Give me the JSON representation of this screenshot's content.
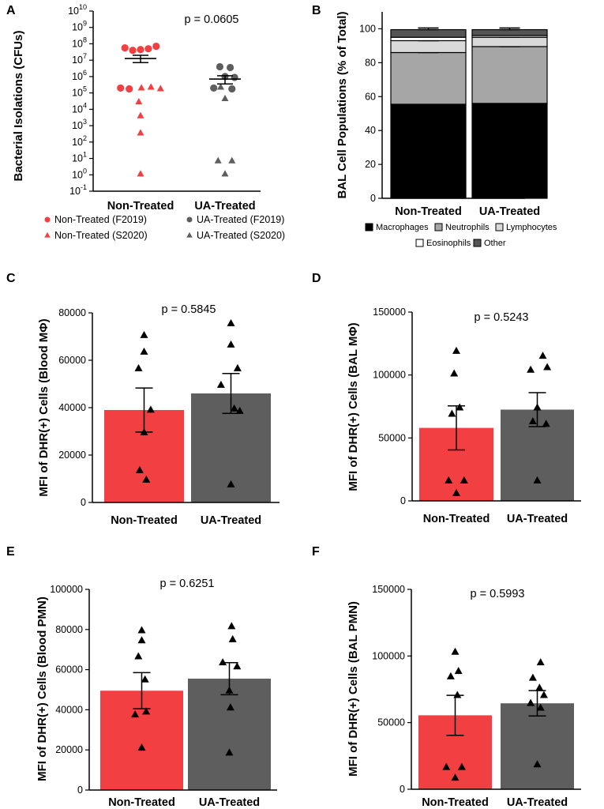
{
  "colors": {
    "red": "#f23f41",
    "gray": "#5e5e5e",
    "black": "#000000",
    "b_macro": "#000000",
    "b_neutro": "#a6a6a6",
    "b_lymph": "#d9d9d9",
    "b_eos": "#ffffff",
    "b_other": "#555555"
  },
  "chart_data": [
    {
      "panel": "A",
      "type": "scatter",
      "yscale": "log10",
      "ylabel": "Bacterial Isolations (CFUs)",
      "categories": [
        "Non-Treated",
        "UA-Treated"
      ],
      "ylim_exp": [
        -1,
        10
      ],
      "yticks": [
        {
          "base": "10",
          "exp": "10"
        },
        {
          "base": "10",
          "exp": "9"
        },
        {
          "base": "10",
          "exp": "8"
        },
        {
          "base": "10",
          "exp": "7"
        },
        {
          "base": "10",
          "exp": "6"
        },
        {
          "base": "10",
          "exp": "5"
        },
        {
          "base": "10",
          "exp": "4"
        },
        {
          "base": "10",
          "exp": "3"
        },
        {
          "base": "10",
          "exp": "2"
        },
        {
          "base": "10",
          "exp": "1"
        },
        {
          "base": "10",
          "exp": "0"
        },
        {
          "base": "10",
          "exp": "-1"
        }
      ],
      "pvalue": "p = 0.0605",
      "mean_log": [
        7.1,
        5.85
      ],
      "sem_log": [
        [
          6.85,
          7.3
        ],
        [
          5.55,
          6.05
        ]
      ],
      "points": [
        {
          "group": 0,
          "shape": "circle",
          "log": 7.75,
          "dx": -0.9
        },
        {
          "group": 0,
          "shape": "circle",
          "log": 7.6,
          "dx": -0.45
        },
        {
          "group": 0,
          "shape": "circle",
          "log": 7.65,
          "dx": 0.0
        },
        {
          "group": 0,
          "shape": "circle",
          "log": 7.7,
          "dx": 0.45
        },
        {
          "group": 0,
          "shape": "circle",
          "log": 7.85,
          "dx": 0.9
        },
        {
          "group": 0,
          "shape": "circle",
          "log": 5.3,
          "dx": -1.15
        },
        {
          "group": 0,
          "shape": "circle",
          "log": 5.25,
          "dx": -0.65
        },
        {
          "group": 0,
          "shape": "triangle",
          "log": 5.3,
          "dx": 0.05
        },
        {
          "group": 0,
          "shape": "triangle",
          "log": 5.35,
          "dx": 0.6
        },
        {
          "group": 0,
          "shape": "triangle",
          "log": 5.25,
          "dx": 1.15
        },
        {
          "group": 0,
          "shape": "triangle",
          "log": 4.45,
          "dx": -0.1
        },
        {
          "group": 0,
          "shape": "triangle",
          "log": 3.6,
          "dx": 0.0
        },
        {
          "group": 0,
          "shape": "triangle",
          "log": 2.55,
          "dx": 0.0
        },
        {
          "group": 0,
          "shape": "triangle",
          "log": 0.05,
          "dx": 0.0
        },
        {
          "group": 1,
          "shape": "circle",
          "log": 6.6,
          "dx": -0.3
        },
        {
          "group": 1,
          "shape": "circle",
          "log": 6.55,
          "dx": 0.3
        },
        {
          "group": 1,
          "shape": "circle",
          "log": 6.0,
          "dx": 0.0
        },
        {
          "group": 1,
          "shape": "circle",
          "log": 5.95,
          "dx": 0.55
        },
        {
          "group": 1,
          "shape": "circle",
          "log": 5.3,
          "dx": -0.65
        },
        {
          "group": 1,
          "shape": "circle",
          "log": 5.25,
          "dx": 0.4
        },
        {
          "group": 1,
          "shape": "triangle",
          "log": 5.35,
          "dx": -0.25
        },
        {
          "group": 1,
          "shape": "triangle",
          "log": 4.65,
          "dx": 0.0
        },
        {
          "group": 1,
          "shape": "triangle",
          "log": 0.85,
          "dx": -0.4
        },
        {
          "group": 1,
          "shape": "triangle",
          "log": 0.85,
          "dx": 0.4
        },
        {
          "group": 1,
          "shape": "triangle",
          "log": 0.05,
          "dx": 0.0
        }
      ],
      "legend": [
        {
          "label": "Non-Treated (F2019)",
          "shape": "circle",
          "color": "red"
        },
        {
          "label": "UA-Treated (F2019)",
          "shape": "circle",
          "color": "gray"
        },
        {
          "label": "Non-Treated (S2020)",
          "shape": "triangle",
          "color": "red"
        },
        {
          "label": "UA-Treated (S2020)",
          "shape": "triangle",
          "color": "gray"
        }
      ]
    },
    {
      "panel": "B",
      "type": "bar",
      "stacked": true,
      "ylabel": "BAL Cell Populations (% of Total)",
      "categories": [
        "Non-Treated",
        "UA-Treated"
      ],
      "ylim": [
        0,
        110
      ],
      "yticks": [
        0,
        20,
        40,
        60,
        80,
        100
      ],
      "series": [
        {
          "name": "Macrophages",
          "color": "b_macro",
          "values": [
            55.5,
            56
          ],
          "sem": [
            3.5,
            3.5
          ]
        },
        {
          "name": "Neutrophils",
          "color": "b_neutro",
          "values": [
            30.5,
            33.5
          ],
          "sem": [
            3.5,
            3
          ]
        },
        {
          "name": "Lymphocytes",
          "color": "b_lymph",
          "values": [
            7,
            5.5
          ],
          "sem": [
            1.5,
            1.5
          ]
        },
        {
          "name": "Eosinophils",
          "color": "b_eos",
          "values": [
            2,
            1
          ],
          "sem": [
            0,
            0
          ]
        },
        {
          "name": "Other",
          "color": "b_other",
          "values": [
            4.5,
            3.5
          ],
          "sem": [
            1,
            1
          ]
        }
      ]
    },
    {
      "panel": "C",
      "type": "bar",
      "ylabel": "MFI of DHR(+) Cells (Blood MΦ)",
      "categories": [
        "Non-Treated",
        "UA-Treated"
      ],
      "ylim": [
        0,
        80000
      ],
      "yticks": [
        0,
        20000,
        40000,
        60000,
        80000
      ],
      "ytick_labels": [
        "0",
        "20000",
        "40000",
        "60000",
        "80000"
      ],
      "pvalue": "p = 0.5845",
      "means": [
        39000,
        46000
      ],
      "sem": [
        9300,
        8400
      ],
      "points": [
        [
          {
            "v": 70500,
            "dx": 0
          },
          {
            "v": 63500,
            "dx": 0
          },
          {
            "v": 56500,
            "dx": -0.5
          },
          {
            "v": 39000,
            "dx": 0.6
          },
          {
            "v": 29500,
            "dx": 0
          },
          {
            "v": 13500,
            "dx": -0.4
          },
          {
            "v": 9500,
            "dx": 0.2
          }
        ],
        [
          {
            "v": 75500,
            "dx": 0
          },
          {
            "v": 66500,
            "dx": 0
          },
          {
            "v": 56500,
            "dx": 0.6
          },
          {
            "v": 49500,
            "dx": -0.9
          },
          {
            "v": 39500,
            "dx": 0.3
          },
          {
            "v": 38500,
            "dx": 0.8
          },
          {
            "v": 7500,
            "dx": 0
          }
        ]
      ]
    },
    {
      "panel": "D",
      "type": "bar",
      "ylabel": "MFI of DHR(+) Cells (BAL MΦ)",
      "categories": [
        "Non-Treated",
        "UA-Treated"
      ],
      "ylim": [
        0,
        150000
      ],
      "yticks": [
        0,
        50000,
        100000,
        150000
      ],
      "ytick_labels": [
        "0",
        "50000",
        "100000",
        "150000"
      ],
      "pvalue": "p = 0.5243",
      "means": [
        58000,
        72500
      ],
      "sem": [
        17500,
        13500
      ],
      "points": [
        [
          {
            "v": 119000,
            "dx": 0
          },
          {
            "v": 101000,
            "dx": -0.2
          },
          {
            "v": 74000,
            "dx": 0.3
          },
          {
            "v": 69000,
            "dx": -0.4
          },
          {
            "v": 16000,
            "dx": -0.7
          },
          {
            "v": 16000,
            "dx": 0.7
          },
          {
            "v": 6000,
            "dx": 0
          }
        ],
        [
          {
            "v": 115000,
            "dx": 0.5
          },
          {
            "v": 104000,
            "dx": -0.6
          },
          {
            "v": 106000,
            "dx": 0.9
          },
          {
            "v": 74000,
            "dx": 0
          },
          {
            "v": 63000,
            "dx": -0.4
          },
          {
            "v": 61000,
            "dx": 0.8
          },
          {
            "v": 16000,
            "dx": 0
          }
        ]
      ]
    },
    {
      "panel": "E",
      "type": "bar",
      "ylabel": "MFI of DHR(+) Cells (Blood PMN)",
      "categories": [
        "Non-Treated",
        "UA-Treated"
      ],
      "ylim": [
        0,
        100000
      ],
      "yticks": [
        0,
        20000,
        40000,
        60000,
        80000,
        100000
      ],
      "ytick_labels": [
        "0",
        "20000",
        "40000",
        "60000",
        "80000",
        "100000"
      ],
      "pvalue": "p = 0.6251",
      "means": [
        49500,
        55500
      ],
      "sem": [
        9000,
        8000
      ],
      "points": [
        [
          {
            "v": 79500,
            "dx": 0
          },
          {
            "v": 74500,
            "dx": 0
          },
          {
            "v": 66500,
            "dx": -0.3
          },
          {
            "v": 55000,
            "dx": 0.3
          },
          {
            "v": 37500,
            "dx": -0.6
          },
          {
            "v": 39000,
            "dx": 0.4
          },
          {
            "v": 21000,
            "dx": 0
          }
        ],
        [
          {
            "v": 81500,
            "dx": 0.2
          },
          {
            "v": 75000,
            "dx": 0.3
          },
          {
            "v": 63500,
            "dx": -0.6
          },
          {
            "v": 61500,
            "dx": 0.7
          },
          {
            "v": 49500,
            "dx": 0
          },
          {
            "v": 41000,
            "dx": 0.1
          },
          {
            "v": 18500,
            "dx": 0
          }
        ]
      ]
    },
    {
      "panel": "F",
      "type": "bar",
      "ylabel": "MFI of DHR(+) Cells (BAL PMN)",
      "categories": [
        "Non-Treated",
        "UA-Treated"
      ],
      "ylim": [
        0,
        150000
      ],
      "yticks": [
        0,
        50000,
        100000,
        150000
      ],
      "ytick_labels": [
        "0",
        "50000",
        "100000",
        "150000"
      ],
      "pvalue": "p = 0.5993",
      "means": [
        55500,
        64500
      ],
      "sem": [
        15000,
        9500
      ],
      "points": [
        [
          {
            "v": 103000,
            "dx": 0
          },
          {
            "v": 88500,
            "dx": 0.3
          },
          {
            "v": 84500,
            "dx": -0.4
          },
          {
            "v": 70500,
            "dx": 0.2
          },
          {
            "v": 16500,
            "dx": -0.8
          },
          {
            "v": 16500,
            "dx": 0.6
          },
          {
            "v": 8500,
            "dx": 0
          }
        ],
        [
          {
            "v": 95000,
            "dx": 0.3
          },
          {
            "v": 83500,
            "dx": -0.4
          },
          {
            "v": 76000,
            "dx": 0.2
          },
          {
            "v": 70500,
            "dx": 0.6
          },
          {
            "v": 64500,
            "dx": -0.6
          },
          {
            "v": 61000,
            "dx": 0.3
          },
          {
            "v": 18500,
            "dx": 0
          }
        ]
      ]
    }
  ]
}
